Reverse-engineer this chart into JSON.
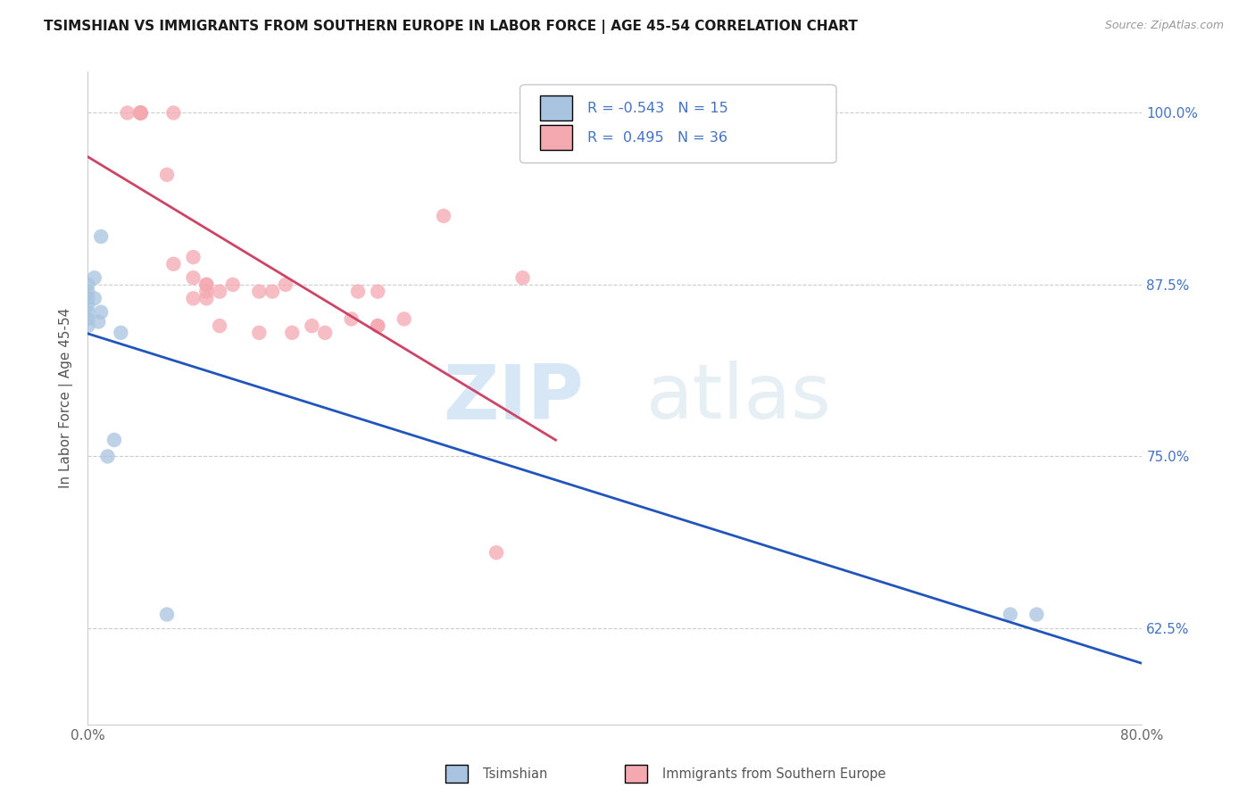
{
  "title": "TSIMSHIAN VS IMMIGRANTS FROM SOUTHERN EUROPE IN LABOR FORCE | AGE 45-54 CORRELATION CHART",
  "source": "Source: ZipAtlas.com",
  "ylabel": "In Labor Force | Age 45-54",
  "x_min": 0.0,
  "x_max": 0.8,
  "y_min": 0.555,
  "y_max": 1.03,
  "y_ticks": [
    0.625,
    0.75,
    0.875,
    1.0
  ],
  "y_tick_labels": [
    "62.5%",
    "75.0%",
    "87.5%",
    "100.0%"
  ],
  "watermark_zip": "ZIP",
  "watermark_atlas": "atlas",
  "blue_scatter_color": "#a8c4e0",
  "pink_scatter_color": "#f4a8b0",
  "blue_line_color": "#2255bb",
  "pink_line_color": "#cc4466",
  "legend_blue_fill": "#a8c4e0",
  "legend_pink_fill": "#f4a8b0",
  "grid_color": "#cccccc",
  "tsimshian_x": [
    0.0,
    0.0,
    0.0,
    0.0,
    0.0,
    0.0,
    0.0,
    0.005,
    0.005,
    0.008,
    0.01,
    0.01,
    0.015,
    0.02,
    0.025,
    0.06,
    0.7,
    0.72
  ],
  "tsimshian_y": [
    0.875,
    0.87,
    0.865,
    0.86,
    0.855,
    0.85,
    0.845,
    0.88,
    0.865,
    0.848,
    0.91,
    0.855,
    0.75,
    0.762,
    0.84,
    0.635,
    0.635,
    0.635
  ],
  "immigrants_x": [
    0.03,
    0.04,
    0.04,
    0.04,
    0.04,
    0.04,
    0.04,
    0.06,
    0.065,
    0.065,
    0.08,
    0.08,
    0.08,
    0.09,
    0.09,
    0.09,
    0.09,
    0.1,
    0.1,
    0.11,
    0.13,
    0.13,
    0.14,
    0.15,
    0.155,
    0.17,
    0.18,
    0.2,
    0.205,
    0.22,
    0.22,
    0.22,
    0.24,
    0.27,
    0.31,
    0.33
  ],
  "immigrants_y": [
    1.0,
    1.0,
    1.0,
    1.0,
    1.0,
    1.0,
    1.0,
    0.955,
    0.89,
    1.0,
    0.895,
    0.865,
    0.88,
    0.875,
    0.87,
    0.865,
    0.875,
    0.87,
    0.845,
    0.875,
    0.87,
    0.84,
    0.87,
    0.875,
    0.84,
    0.845,
    0.84,
    0.85,
    0.87,
    0.87,
    0.845,
    0.845,
    0.85,
    0.925,
    0.68,
    0.88
  ]
}
